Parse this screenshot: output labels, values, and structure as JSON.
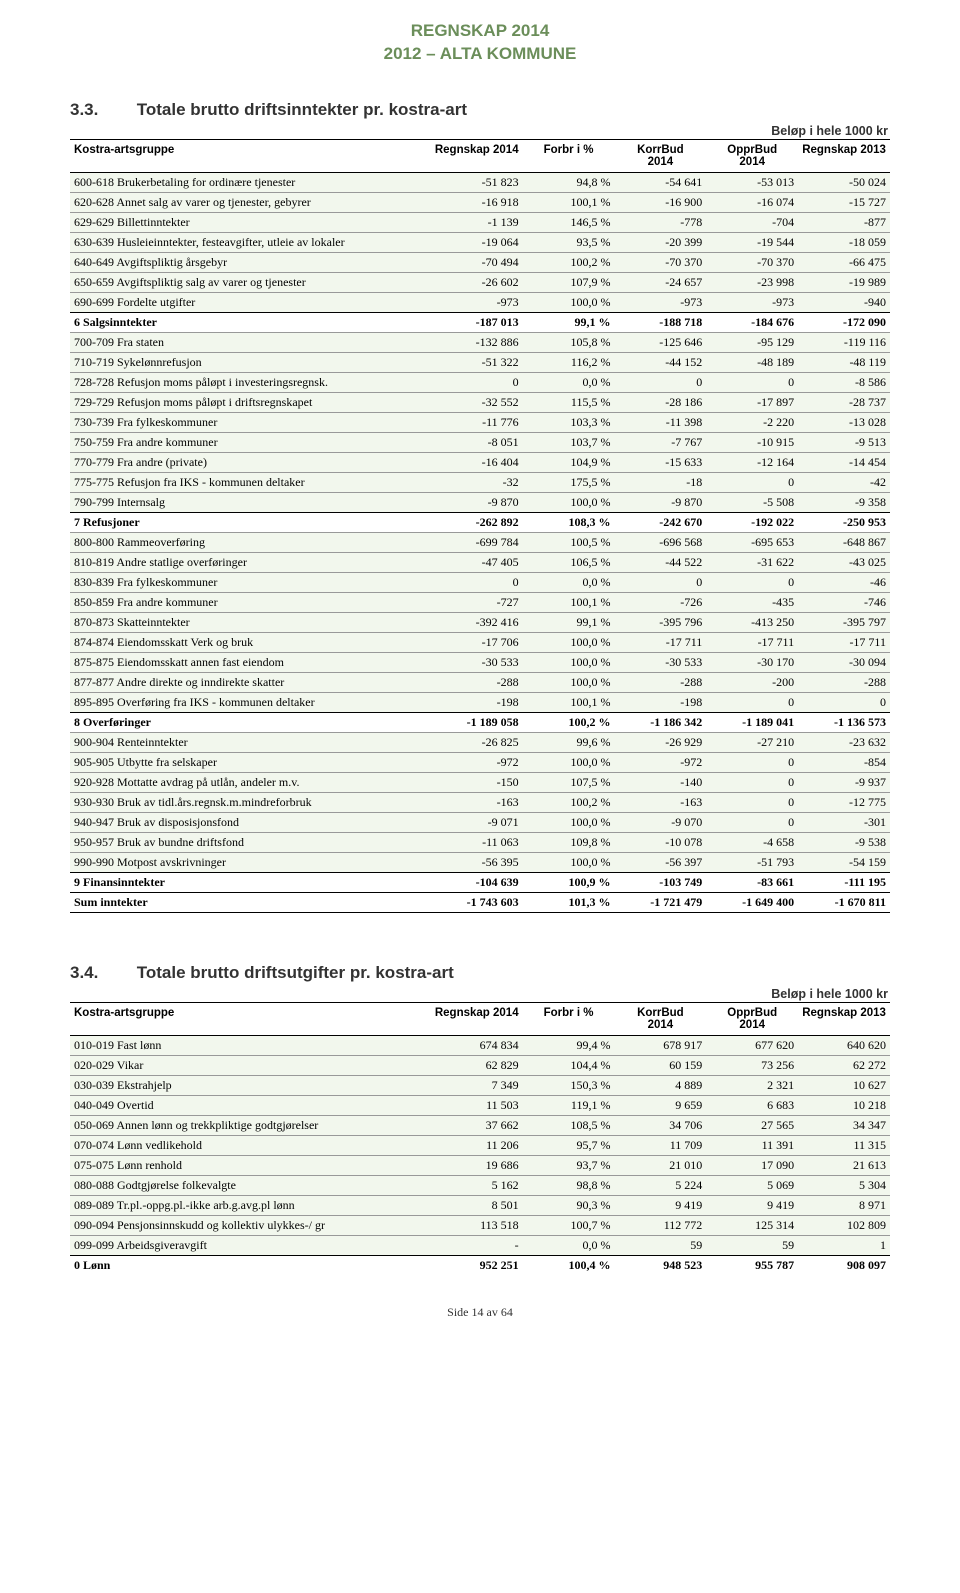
{
  "header": {
    "line1": "REGNSKAP 2014",
    "line2": "2012 – ALTA KOMMUNE"
  },
  "colors": {
    "header_text": "#6b8e5a",
    "detail_bg": "#f2f7ed"
  },
  "unit_label": "Beløp i hele 1000 kr",
  "section33": {
    "num": "3.3.",
    "title": "Totale brutto driftsinntekter pr. kostra-art",
    "columns": [
      "Kostra-artsgruppe",
      "Regnskap 2014",
      "Forbr i %",
      "KorrBud 2014",
      "OpprBud 2014",
      "Regnskap 2013"
    ],
    "groups": [
      {
        "rows": [
          [
            "600-618 Brukerbetaling for ordinære tjenester",
            "-51 823",
            "94,8 %",
            "-54 641",
            "-53 013",
            "-50 024"
          ],
          [
            "620-628 Annet salg av varer og tjenester, gebyrer",
            "-16 918",
            "100,1 %",
            "-16 900",
            "-16 074",
            "-15 727"
          ],
          [
            "629-629 Billettinntekter",
            "-1 139",
            "146,5 %",
            "-778",
            "-704",
            "-877"
          ],
          [
            "630-639 Husleieinntekter, festeavgifter, utleie av lokaler",
            "-19 064",
            "93,5 %",
            "-20 399",
            "-19 544",
            "-18 059"
          ],
          [
            "640-649 Avgiftspliktig årsgebyr",
            "-70 494",
            "100,2 %",
            "-70 370",
            "-70 370",
            "-66 475"
          ],
          [
            "650-659 Avgiftspliktig salg av varer og tjenester",
            "-26 602",
            "107,9 %",
            "-24 657",
            "-23 998",
            "-19 989"
          ],
          [
            "690-699 Fordelte utgifter",
            "-973",
            "100,0 %",
            "-973",
            "-973",
            "-940"
          ]
        ],
        "subtotal": [
          "6 Salgsinntekter",
          "-187 013",
          "99,1 %",
          "-188 718",
          "-184 676",
          "-172 090"
        ]
      },
      {
        "rows": [
          [
            "700-709 Fra staten",
            "-132 886",
            "105,8 %",
            "-125 646",
            "-95 129",
            "-119 116"
          ],
          [
            "710-719 Sykelønnrefusjon",
            "-51 322",
            "116,2 %",
            "-44 152",
            "-48 189",
            "-48 119"
          ],
          [
            "728-728 Refusjon moms påløpt i investeringsregnsk.",
            "0",
            "0,0 %",
            "0",
            "0",
            "-8 586"
          ],
          [
            "729-729 Refusjon moms påløpt i driftsregnskapet",
            "-32 552",
            "115,5 %",
            "-28 186",
            "-17 897",
            "-28 737"
          ],
          [
            "730-739 Fra fylkeskommuner",
            "-11 776",
            "103,3 %",
            "-11 398",
            "-2 220",
            "-13 028"
          ],
          [
            "750-759 Fra andre kommuner",
            "-8 051",
            "103,7 %",
            "-7 767",
            "-10 915",
            "-9 513"
          ],
          [
            "770-779 Fra andre (private)",
            "-16 404",
            "104,9 %",
            "-15 633",
            "-12 164",
            "-14 454"
          ],
          [
            "775-775 Refusjon fra IKS - kommunen deltaker",
            "-32",
            "175,5 %",
            "-18",
            "0",
            "-42"
          ],
          [
            "790-799 Internsalg",
            "-9 870",
            "100,0 %",
            "-9 870",
            "-5 508",
            "-9 358"
          ]
        ],
        "subtotal": [
          "7 Refusjoner",
          "-262 892",
          "108,3 %",
          "-242 670",
          "-192 022",
          "-250 953"
        ]
      },
      {
        "rows": [
          [
            "800-800 Rammeoverføring",
            "-699 784",
            "100,5 %",
            "-696 568",
            "-695 653",
            "-648 867"
          ],
          [
            "810-819 Andre statlige overføringer",
            "-47 405",
            "106,5 %",
            "-44 522",
            "-31 622",
            "-43 025"
          ],
          [
            "830-839 Fra fylkeskommuner",
            "0",
            "0,0 %",
            "0",
            "0",
            "-46"
          ],
          [
            "850-859 Fra andre kommuner",
            "-727",
            "100,1 %",
            "-726",
            "-435",
            "-746"
          ],
          [
            "870-873 Skatteinntekter",
            "-392 416",
            "99,1 %",
            "-395 796",
            "-413 250",
            "-395 797"
          ],
          [
            "874-874 Eiendomsskatt Verk og bruk",
            "-17 706",
            "100,0 %",
            "-17 711",
            "-17 711",
            "-17 711"
          ],
          [
            "875-875 Eiendomsskatt annen fast eiendom",
            "-30 533",
            "100,0 %",
            "-30 533",
            "-30 170",
            "-30 094"
          ],
          [
            "877-877 Andre direkte og inndirekte skatter",
            "-288",
            "100,0 %",
            "-288",
            "-200",
            "-288"
          ],
          [
            "895-895 Overføring fra IKS - kommunen deltaker",
            "-198",
            "100,1 %",
            "-198",
            "0",
            "0"
          ]
        ],
        "subtotal": [
          "8 Overføringer",
          "-1 189 058",
          "100,2 %",
          "-1 186 342",
          "-1 189 041",
          "-1 136 573"
        ]
      },
      {
        "rows": [
          [
            "900-904 Renteinntekter",
            "-26 825",
            "99,6 %",
            "-26 929",
            "-27 210",
            "-23 632"
          ],
          [
            "905-905 Utbytte fra selskaper",
            "-972",
            "100,0 %",
            "-972",
            "0",
            "-854"
          ],
          [
            "920-928 Mottatte avdrag på utlån, andeler m.v.",
            "-150",
            "107,5 %",
            "-140",
            "0",
            "-9 937"
          ],
          [
            "930-930 Bruk av tidl.års.regnsk.m.mindreforbruk",
            "-163",
            "100,2 %",
            "-163",
            "0",
            "-12 775"
          ],
          [
            "940-947 Bruk av disposisjonsfond",
            "-9 071",
            "100,0 %",
            "-9 070",
            "0",
            "-301"
          ],
          [
            "950-957 Bruk av bundne driftsfond",
            "-11 063",
            "109,8 %",
            "-10 078",
            "-4 658",
            "-9 538"
          ],
          [
            "990-990 Motpost avskrivninger",
            "-56 395",
            "100,0 %",
            "-56 397",
            "-51 793",
            "-54 159"
          ]
        ],
        "subtotal": [
          "9 Finansinntekter",
          "-104 639",
          "100,9 %",
          "-103 749",
          "-83 661",
          "-111 195"
        ]
      }
    ],
    "grand": [
      "Sum inntekter",
      "-1 743 603",
      "101,3 %",
      "-1 721 479",
      "-1 649 400",
      "-1 670 811"
    ]
  },
  "section34": {
    "num": "3.4.",
    "title": "Totale brutto driftsutgifter pr. kostra-art",
    "columns": [
      "Kostra-artsgruppe",
      "Regnskap 2014",
      "Forbr i %",
      "KorrBud 2014",
      "OpprBud 2014",
      "Regnskap 2013"
    ],
    "groups": [
      {
        "rows": [
          [
            "010-019 Fast lønn",
            "674 834",
            "99,4 %",
            "678 917",
            "677 620",
            "640 620"
          ],
          [
            "020-029 Vikar",
            "62 829",
            "104,4 %",
            "60 159",
            "73 256",
            "62 272"
          ],
          [
            "030-039 Ekstrahjelp",
            "7 349",
            "150,3 %",
            "4 889",
            "2 321",
            "10 627"
          ],
          [
            "040-049 Overtid",
            "11 503",
            "119,1 %",
            "9 659",
            "6 683",
            "10 218"
          ],
          [
            "050-069 Annen lønn og trekkpliktige godtgjørelser",
            "37 662",
            "108,5 %",
            "34 706",
            "27 565",
            "34 347"
          ],
          [
            "070-074 Lønn vedlikehold",
            "11 206",
            "95,7 %",
            "11 709",
            "11 391",
            "11 315"
          ],
          [
            "075-075 Lønn renhold",
            "19 686",
            "93,7 %",
            "21 010",
            "17 090",
            "21 613"
          ],
          [
            "080-088 Godtgjørelse folkevalgte",
            "5 162",
            "98,8 %",
            "5 224",
            "5 069",
            "5 304"
          ],
          [
            "089-089 Tr.pl.-oppg.pl.-ikke arb.g.avg.pl lønn",
            "8 501",
            "90,3 %",
            "9 419",
            "9 419",
            "8 971"
          ],
          [
            "090-094 Pensjonsinnskudd og kollektiv ulykkes-/ gr",
            "113 518",
            "100,7 %",
            "112 772",
            "125 314",
            "102 809"
          ],
          [
            "099-099 Arbeidsgiveravgift",
            "-",
            "0,0 %",
            "59",
            "59",
            "1"
          ]
        ],
        "subtotal": [
          "0 Lønn",
          "952 251",
          "100,4 %",
          "948 523",
          "955 787",
          "908 097"
        ]
      }
    ]
  },
  "footer": "Side 14 av 64"
}
